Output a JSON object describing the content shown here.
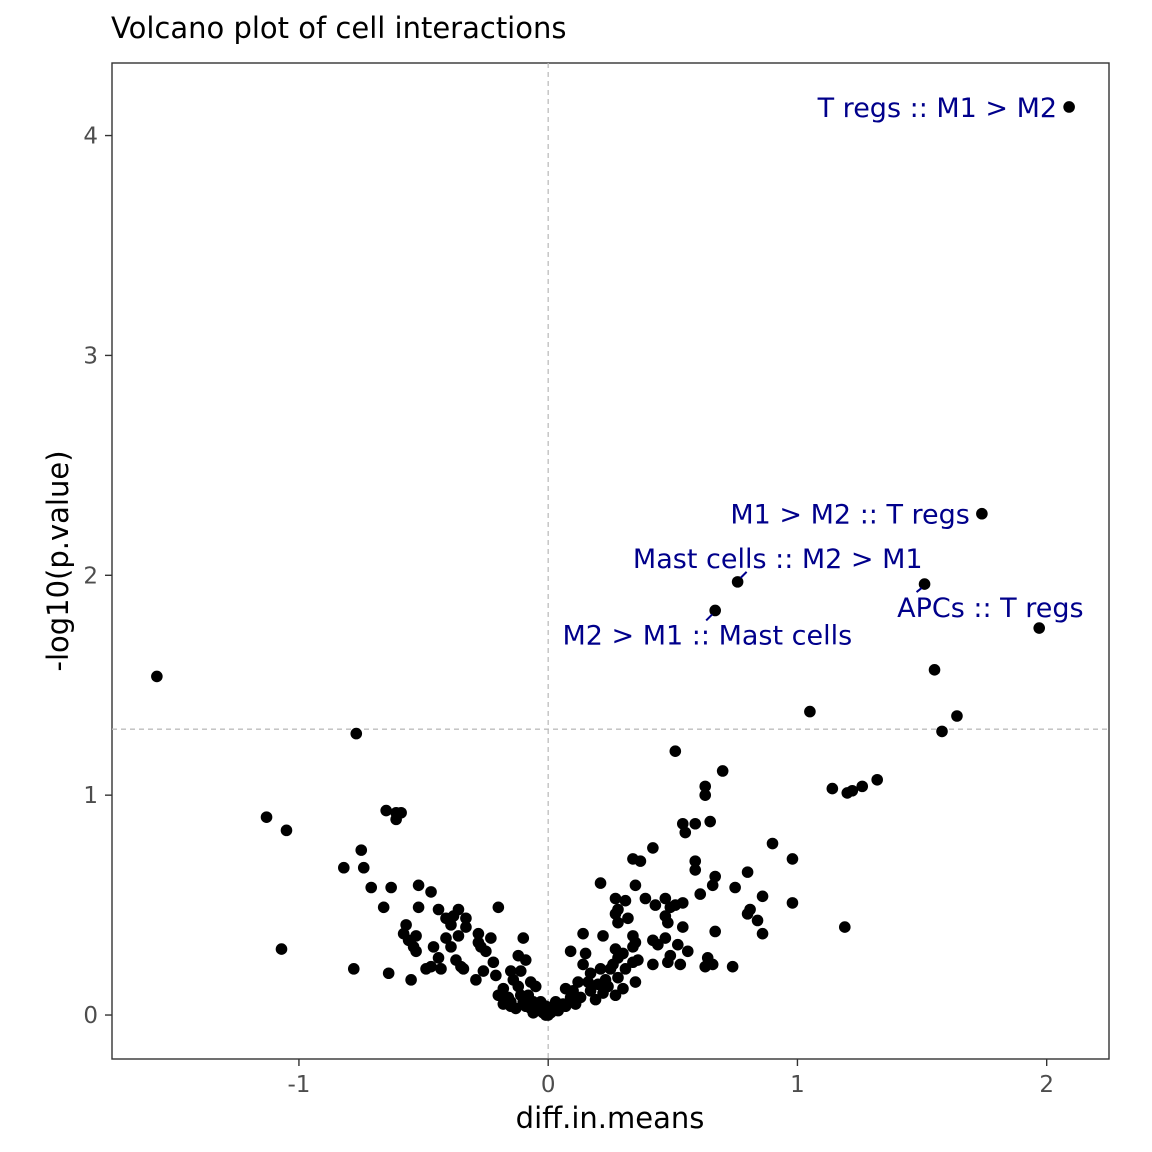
{
  "chart_data": {
    "type": "scatter",
    "title": "Volcano plot of cell interactions",
    "xlabel": "diff.in.means",
    "ylabel": "-log10(p.value)",
    "xlim": [
      -1.75,
      2.25
    ],
    "ylim": [
      -0.2,
      4.33
    ],
    "x_ticks": [
      -1,
      0,
      1,
      2
    ],
    "y_ticks": [
      0,
      1,
      2,
      3,
      4
    ],
    "x_tick_labels": [
      "-1",
      "0",
      "1",
      "2"
    ],
    "y_tick_labels": [
      "0",
      "1",
      "2",
      "3",
      "4"
    ],
    "grid": false,
    "reference_lines": {
      "x": 0,
      "y": 1.3
    },
    "point_color": "#000000",
    "annotation_color": "#00008b",
    "annotations": [
      {
        "text": "T regs :: M1 > M2",
        "x": 2.09,
        "y": 4.13
      },
      {
        "text": "M1 > M2 :: T regs",
        "x": 1.74,
        "y": 2.28
      },
      {
        "text": "Mast cells :: M2 > M1",
        "x": 0.76,
        "y": 1.97
      },
      {
        "text": "APCs :: T regs",
        "x": 1.51,
        "y": 1.96
      },
      {
        "text": "M2 > M1 :: Mast cells",
        "x": 0.67,
        "y": 1.84
      }
    ],
    "points": [
      [
        2.09,
        4.13
      ],
      [
        1.74,
        2.28
      ],
      [
        0.76,
        1.97
      ],
      [
        1.51,
        1.96
      ],
      [
        1.97,
        1.76
      ],
      [
        0.67,
        1.84
      ],
      [
        1.55,
        1.57
      ],
      [
        -1.57,
        1.54
      ],
      [
        1.05,
        1.38
      ],
      [
        1.64,
        1.36
      ],
      [
        1.58,
        1.29
      ],
      [
        -0.77,
        1.28
      ],
      [
        0.51,
        1.2
      ],
      [
        0.7,
        1.11
      ],
      [
        1.32,
        1.07
      ],
      [
        1.26,
        1.04
      ],
      [
        0.63,
        1.04
      ],
      [
        1.14,
        1.03
      ],
      [
        1.22,
        1.02
      ],
      [
        1.2,
        1.01
      ],
      [
        0.63,
        1.0
      ],
      [
        -0.65,
        0.93
      ],
      [
        -0.61,
        0.92
      ],
      [
        -0.59,
        0.92
      ],
      [
        -1.13,
        0.9
      ],
      [
        -0.61,
        0.89
      ],
      [
        0.54,
        0.87
      ],
      [
        0.59,
        0.87
      ],
      [
        0.65,
        0.88
      ],
      [
        -1.05,
        0.84
      ],
      [
        0.55,
        0.83
      ],
      [
        0.9,
        0.78
      ],
      [
        0.42,
        0.76
      ],
      [
        -0.75,
        0.75
      ],
      [
        0.34,
        0.71
      ],
      [
        0.37,
        0.7
      ],
      [
        0.59,
        0.7
      ],
      [
        0.98,
        0.71
      ],
      [
        -0.82,
        0.67
      ],
      [
        -0.74,
        0.67
      ],
      [
        0.59,
        0.66
      ],
      [
        0.8,
        0.65
      ],
      [
        0.67,
        0.63
      ],
      [
        -0.71,
        0.58
      ],
      [
        -0.63,
        0.58
      ],
      [
        -0.52,
        0.59
      ],
      [
        0.21,
        0.6
      ],
      [
        0.35,
        0.59
      ],
      [
        0.66,
        0.59
      ],
      [
        0.75,
        0.58
      ],
      [
        -0.47,
        0.56
      ],
      [
        0.61,
        0.55
      ],
      [
        0.86,
        0.54
      ],
      [
        0.27,
        0.53
      ],
      [
        0.31,
        0.52
      ],
      [
        0.39,
        0.53
      ],
      [
        0.47,
        0.53
      ],
      [
        0.43,
        0.5
      ],
      [
        0.51,
        0.5
      ],
      [
        0.54,
        0.51
      ],
      [
        -0.66,
        0.49
      ],
      [
        -0.52,
        0.49
      ],
      [
        -0.2,
        0.49
      ],
      [
        0.81,
        0.48
      ],
      [
        0.98,
        0.51
      ],
      [
        -0.44,
        0.48
      ],
      [
        -0.36,
        0.48
      ],
      [
        0.28,
        0.48
      ],
      [
        0.49,
        0.49
      ],
      [
        0.47,
        0.45
      ],
      [
        0.8,
        0.46
      ],
      [
        -0.41,
        0.44
      ],
      [
        -0.38,
        0.45
      ],
      [
        -0.33,
        0.44
      ],
      [
        0.27,
        0.46
      ],
      [
        0.32,
        0.44
      ],
      [
        0.84,
        0.43
      ],
      [
        -0.57,
        0.41
      ],
      [
        -0.39,
        0.41
      ],
      [
        0.28,
        0.42
      ],
      [
        0.48,
        0.42
      ],
      [
        1.19,
        0.4
      ],
      [
        -0.58,
        0.37
      ],
      [
        -0.53,
        0.36
      ],
      [
        -0.33,
        0.4
      ],
      [
        0.14,
        0.37
      ],
      [
        0.22,
        0.36
      ],
      [
        0.34,
        0.36
      ],
      [
        0.54,
        0.4
      ],
      [
        0.67,
        0.38
      ],
      [
        -0.28,
        0.37
      ],
      [
        -0.36,
        0.36
      ],
      [
        -0.56,
        0.34
      ],
      [
        -0.41,
        0.35
      ],
      [
        -0.1,
        0.35
      ],
      [
        0.35,
        0.33
      ],
      [
        0.42,
        0.34
      ],
      [
        0.47,
        0.35
      ],
      [
        0.86,
        0.37
      ],
      [
        -0.28,
        0.33
      ],
      [
        -0.23,
        0.35
      ],
      [
        0.52,
        0.32
      ],
      [
        0.34,
        0.31
      ],
      [
        0.44,
        0.32
      ],
      [
        -0.54,
        0.31
      ],
      [
        -0.46,
        0.31
      ],
      [
        -1.07,
        0.3
      ],
      [
        -0.39,
        0.31
      ],
      [
        -0.27,
        0.31
      ],
      [
        0.09,
        0.29
      ],
      [
        0.15,
        0.28
      ],
      [
        0.27,
        0.3
      ],
      [
        0.3,
        0.28
      ],
      [
        0.56,
        0.29
      ],
      [
        -0.53,
        0.29
      ],
      [
        -0.25,
        0.29
      ],
      [
        -0.12,
        0.27
      ],
      [
        0.28,
        0.26
      ],
      [
        0.49,
        0.27
      ],
      [
        0.64,
        0.26
      ],
      [
        -0.44,
        0.26
      ],
      [
        -0.37,
        0.25
      ],
      [
        -0.09,
        0.25
      ],
      [
        0.34,
        0.24
      ],
      [
        0.36,
        0.25
      ],
      [
        0.48,
        0.24
      ],
      [
        -0.22,
        0.24
      ],
      [
        0.14,
        0.23
      ],
      [
        0.26,
        0.23
      ],
      [
        0.42,
        0.23
      ],
      [
        0.53,
        0.23
      ],
      [
        0.63,
        0.22
      ],
      [
        0.66,
        0.23
      ],
      [
        0.74,
        0.22
      ],
      [
        -0.47,
        0.22
      ],
      [
        -0.49,
        0.21
      ],
      [
        -0.78,
        0.21
      ],
      [
        -0.35,
        0.22
      ],
      [
        -0.43,
        0.21
      ],
      [
        -0.34,
        0.21
      ],
      [
        0.21,
        0.21
      ],
      [
        0.25,
        0.21
      ],
      [
        0.31,
        0.21
      ],
      [
        -0.64,
        0.19
      ],
      [
        -0.15,
        0.2
      ],
      [
        -0.11,
        0.2
      ],
      [
        -0.26,
        0.2
      ],
      [
        0.17,
        0.19
      ],
      [
        0.28,
        0.17
      ],
      [
        0.23,
        0.16
      ],
      [
        0.35,
        0.15
      ],
      [
        0.16,
        0.15
      ],
      [
        0.2,
        0.14
      ],
      [
        -0.55,
        0.16
      ],
      [
        -0.21,
        0.18
      ],
      [
        -0.29,
        0.16
      ],
      [
        -0.14,
        0.16
      ],
      [
        -0.07,
        0.15
      ],
      [
        0.12,
        0.15
      ],
      [
        0.24,
        0.13
      ],
      [
        0.3,
        0.12
      ],
      [
        -0.18,
        0.12
      ],
      [
        -0.12,
        0.13
      ],
      [
        -0.05,
        0.13
      ],
      [
        0.07,
        0.12
      ],
      [
        0.1,
        0.11
      ],
      [
        0.17,
        0.11
      ],
      [
        0.22,
        0.1
      ],
      [
        0.27,
        0.09
      ],
      [
        -0.2,
        0.09
      ],
      [
        -0.16,
        0.08
      ],
      [
        -0.11,
        0.09
      ],
      [
        -0.08,
        0.09
      ],
      [
        0.09,
        0.08
      ],
      [
        0.13,
        0.08
      ],
      [
        0.19,
        0.07
      ],
      [
        -0.15,
        0.06
      ],
      [
        -0.1,
        0.06
      ],
      [
        -0.06,
        0.06
      ],
      [
        -0.03,
        0.06
      ],
      [
        0.03,
        0.06
      ],
      [
        0.06,
        0.05
      ],
      [
        0.11,
        0.05
      ],
      [
        -0.18,
        0.05
      ],
      [
        -0.15,
        0.04
      ],
      [
        -0.09,
        0.04
      ],
      [
        -0.05,
        0.04
      ],
      [
        -0.01,
        0.04
      ],
      [
        0.02,
        0.04
      ],
      [
        0.07,
        0.04
      ],
      [
        -0.13,
        0.03
      ],
      [
        -0.07,
        0.03
      ],
      [
        -0.03,
        0.02
      ],
      [
        0.0,
        0.02
      ],
      [
        0.04,
        0.02
      ],
      [
        -0.06,
        0.01
      ],
      [
        -0.02,
        0.01
      ],
      [
        0.01,
        0.01
      ],
      [
        0.0,
        0.0
      ],
      [
        -0.01,
        0.0
      ]
    ]
  }
}
